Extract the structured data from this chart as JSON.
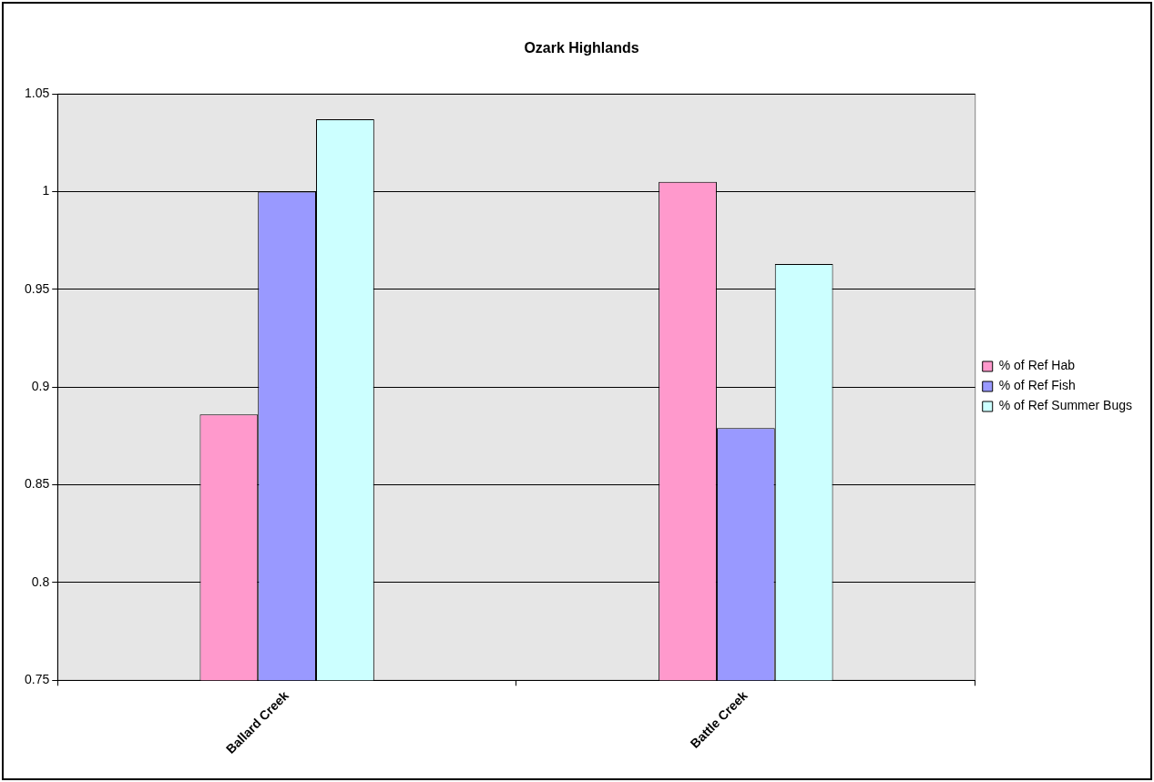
{
  "chart_data": {
    "type": "bar",
    "title": "Ozark Highlands",
    "categories": [
      "Ballard Creek",
      "Battle Creek"
    ],
    "series": [
      {
        "name": "% of Ref Hab",
        "color": "#ff99cc",
        "values": [
          0.886,
          1.005
        ]
      },
      {
        "name": "% of Ref Fish",
        "color": "#9999ff",
        "values": [
          1.0,
          0.879
        ]
      },
      {
        "name": "% of Ref Summer Bugs",
        "color": "#ccffff",
        "values": [
          1.037,
          0.963
        ]
      }
    ],
    "ylim": [
      0.75,
      1.05
    ],
    "yticks": [
      0.75,
      0.8,
      0.85,
      0.9,
      0.95,
      1,
      1.05
    ],
    "grid": "y",
    "legend": "right"
  }
}
